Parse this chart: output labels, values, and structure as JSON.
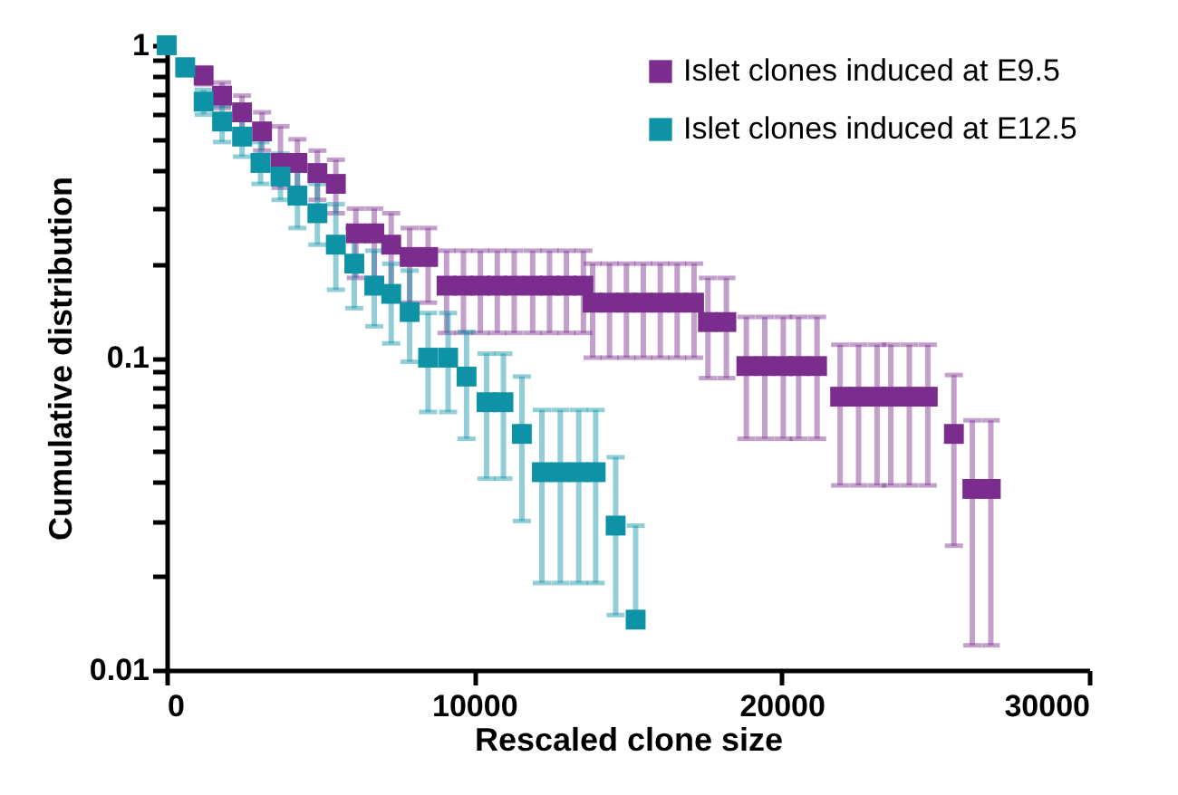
{
  "chart_data": {
    "type": "scatter",
    "xlabel": "Rescaled clone size",
    "ylabel": "Cumulative distribution",
    "xlim": [
      0,
      30000
    ],
    "xticks": [
      0,
      10000,
      20000,
      30000
    ],
    "ylim": [
      0.01,
      1
    ],
    "log": "y",
    "yticks": [
      0.01,
      {
        "value": 0.02,
        "label": null
      },
      {
        "value": 0.03,
        "label": null
      },
      {
        "value": 0.04,
        "label": null
      },
      {
        "value": 0.05,
        "label": null
      },
      {
        "value": 0.06,
        "label": null
      },
      {
        "value": 0.07,
        "label": null
      },
      {
        "value": 0.08,
        "label": null
      },
      {
        "value": 0.09,
        "label": null
      },
      0.1,
      {
        "value": 0.2,
        "label": null
      },
      {
        "value": 0.3,
        "label": null
      },
      {
        "value": 0.4,
        "label": null
      },
      {
        "value": 0.5,
        "label": null
      },
      {
        "value": 0.6,
        "label": null
      },
      {
        "value": 0.7,
        "label": null
      },
      {
        "value": 0.8,
        "label": null
      },
      {
        "value": 0.9,
        "label": null
      },
      1
    ],
    "legend": "top right",
    "marker": "square",
    "series": [
      {
        "name": "Islet clones induced at E9.5",
        "color": "#7b2d8e",
        "x": [
          1200,
          1800,
          2450,
          3100,
          3700,
          4250,
          4900,
          5500,
          6150,
          6750,
          7300,
          7900,
          8500,
          9100,
          9650,
          10200,
          10750,
          11300,
          11900,
          12450,
          13000,
          13550,
          13850,
          14400,
          14950,
          15500,
          16050,
          16600,
          17150,
          17600,
          18200,
          18850,
          19450,
          20050,
          20550,
          21150,
          21900,
          22500,
          23100,
          23550,
          24150,
          24750,
          25600,
          26200,
          26800
        ],
        "values": [
          0.8,
          0.69,
          0.61,
          0.53,
          0.42,
          0.42,
          0.39,
          0.36,
          0.25,
          0.25,
          0.23,
          0.21,
          0.21,
          0.17,
          0.17,
          0.17,
          0.17,
          0.17,
          0.17,
          0.17,
          0.17,
          0.17,
          0.15,
          0.15,
          0.15,
          0.15,
          0.15,
          0.15,
          0.15,
          0.13,
          0.13,
          0.094,
          0.094,
          0.094,
          0.094,
          0.094,
          0.075,
          0.075,
          0.075,
          0.075,
          0.075,
          0.075,
          0.057,
          0.038,
          0.038
        ],
        "errors": [
          [
            0.75,
            0.85
          ],
          [
            0.63,
            0.76
          ],
          [
            0.54,
            0.69
          ],
          [
            0.46,
            0.61
          ],
          [
            0.35,
            0.55
          ],
          [
            0.35,
            0.5
          ],
          [
            0.32,
            0.46
          ],
          [
            0.29,
            0.43
          ],
          [
            0.18,
            0.3
          ],
          [
            0.18,
            0.3
          ],
          [
            0.165,
            0.29
          ],
          [
            0.15,
            0.26
          ],
          [
            0.15,
            0.26
          ],
          [
            0.12,
            0.22
          ],
          [
            0.12,
            0.22
          ],
          [
            0.12,
            0.22
          ],
          [
            0.12,
            0.22
          ],
          [
            0.12,
            0.22
          ],
          [
            0.12,
            0.22
          ],
          [
            0.12,
            0.22
          ],
          [
            0.12,
            0.22
          ],
          [
            0.12,
            0.22
          ],
          [
            0.1,
            0.2
          ],
          [
            0.1,
            0.2
          ],
          [
            0.1,
            0.2
          ],
          [
            0.1,
            0.2
          ],
          [
            0.1,
            0.2
          ],
          [
            0.1,
            0.2
          ],
          [
            0.1,
            0.2
          ],
          [
            0.086,
            0.18
          ],
          [
            0.086,
            0.18
          ],
          [
            0.055,
            0.135
          ],
          [
            0.055,
            0.135
          ],
          [
            0.055,
            0.135
          ],
          [
            0.055,
            0.135
          ],
          [
            0.055,
            0.135
          ],
          [
            0.039,
            0.11
          ],
          [
            0.039,
            0.11
          ],
          [
            0.039,
            0.11
          ],
          [
            0.039,
            0.11
          ],
          [
            0.039,
            0.11
          ],
          [
            0.039,
            0.11
          ],
          [
            0.025,
            0.088
          ],
          [
            0.012,
            0.063
          ],
          [
            0.012,
            0.063
          ]
        ]
      },
      {
        "name": "Islet clones induced at E12.5",
        "color": "#0e93a6",
        "x": [
          0,
          600,
          1200,
          1800,
          2450,
          3050,
          3700,
          4250,
          4900,
          5500,
          6100,
          6750,
          7300,
          7900,
          8500,
          9150,
          9750,
          10400,
          10950,
          11550,
          12200,
          12800,
          13400,
          13950,
          14600,
          15250
        ],
        "values": [
          1,
          0.85,
          0.66,
          0.57,
          0.51,
          0.42,
          0.38,
          0.33,
          0.29,
          0.23,
          0.2,
          0.17,
          0.16,
          0.14,
          0.1,
          0.1,
          0.087,
          0.072,
          0.072,
          0.057,
          0.043,
          0.043,
          0.043,
          0.043,
          0.029,
          0.0145
        ],
        "errors": [
          null,
          [
            0.8,
            0.9
          ],
          [
            0.6,
            0.72
          ],
          [
            0.49,
            0.64
          ],
          [
            0.44,
            0.58
          ],
          [
            0.36,
            0.49
          ],
          [
            0.32,
            0.45
          ],
          [
            0.26,
            0.4
          ],
          [
            0.23,
            0.36
          ],
          [
            0.165,
            0.31
          ],
          [
            0.144,
            0.26
          ],
          [
            0.126,
            0.22
          ],
          [
            0.111,
            0.2
          ],
          [
            0.097,
            0.19
          ],
          [
            0.067,
            0.139
          ],
          [
            0.067,
            0.139
          ],
          [
            0.055,
            0.121
          ],
          [
            0.041,
            0.103
          ],
          [
            0.041,
            0.103
          ],
          [
            0.03,
            0.087
          ],
          [
            0.019,
            0.068
          ],
          [
            0.019,
            0.068
          ],
          [
            0.019,
            0.068
          ],
          [
            0.019,
            0.068
          ],
          [
            0.015,
            0.048
          ],
          [
            0.0145,
            0.029
          ]
        ]
      }
    ]
  }
}
